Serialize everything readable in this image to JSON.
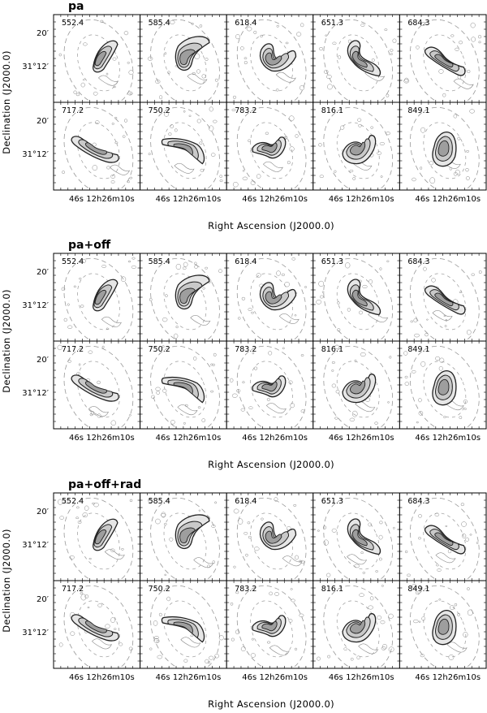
{
  "figure": {
    "groups": [
      {
        "title": "pa"
      },
      {
        "title": "pa+off"
      },
      {
        "title": "pa+off+rad"
      }
    ],
    "velocities": [
      "552.4",
      "585.4",
      "618.4",
      "651.3",
      "684.3",
      "717.2",
      "750.2",
      "783.2",
      "816.1",
      "849.1"
    ],
    "y_axis": {
      "label": "Declination (J2000.0)",
      "tick_upper": "20′",
      "tick_lower": "31°12′"
    },
    "x_axis": {
      "label": "Right Ascension (J2000.0)",
      "tick_left": "46s",
      "tick_right": "12h26m10s"
    }
  },
  "colors": {
    "frame": "#000000",
    "model_contour": "#222222",
    "residual_contour": "#888888",
    "ellipse": "#999999"
  }
}
